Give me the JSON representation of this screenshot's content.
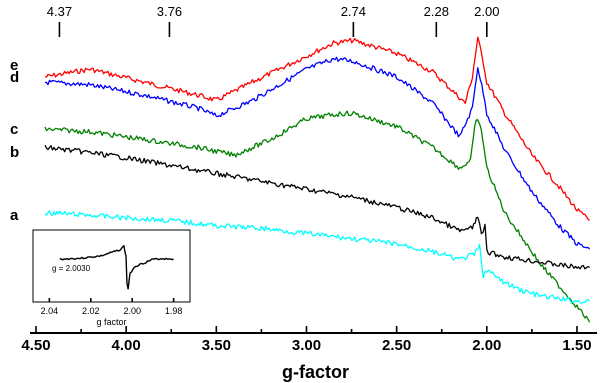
{
  "chart_data": {
    "type": "line",
    "xlabel": "g-factor",
    "xlim": [
      4.5,
      1.4
    ],
    "x_ticks": [
      "4.50",
      "4.00",
      "3.50",
      "3.00",
      "2.50",
      "2.00",
      "1.50"
    ],
    "top_markers": [
      "4.37",
      "3.76",
      "2.74",
      "2.28",
      "2.00"
    ],
    "top_marker_values": [
      4.37,
      3.76,
      2.74,
      2.28,
      2.0
    ],
    "series": [
      {
        "name": "e",
        "color": "#ff0000",
        "x": [
          4.45,
          4.2,
          3.9,
          3.6,
          3.5,
          3.3,
          3.0,
          2.85,
          2.74,
          2.5,
          2.3,
          2.12,
          2.08,
          2.05,
          2.02,
          2.0,
          1.9,
          1.75,
          1.6,
          1.5,
          1.43
        ],
        "y": [
          0.82,
          0.85,
          0.8,
          0.75,
          0.73,
          0.8,
          0.9,
          0.95,
          0.96,
          0.91,
          0.84,
          0.72,
          0.82,
          0.97,
          0.88,
          0.8,
          0.68,
          0.52,
          0.4,
          0.31,
          0.27
        ]
      },
      {
        "name": "d",
        "color": "#0000ff",
        "x": [
          4.45,
          4.2,
          3.9,
          3.6,
          3.5,
          3.3,
          3.0,
          2.85,
          2.74,
          2.5,
          2.3,
          2.15,
          2.08,
          2.05,
          2.02,
          2.0,
          1.9,
          1.75,
          1.6,
          1.5,
          1.43
        ],
        "y": [
          0.8,
          0.79,
          0.75,
          0.7,
          0.67,
          0.73,
          0.85,
          0.89,
          0.88,
          0.82,
          0.72,
          0.59,
          0.7,
          0.86,
          0.76,
          0.68,
          0.54,
          0.38,
          0.25,
          0.18,
          0.16
        ]
      },
      {
        "name": "c",
        "color": "#008000",
        "x": [
          4.45,
          4.2,
          3.9,
          3.6,
          3.4,
          3.2,
          3.0,
          2.8,
          2.74,
          2.5,
          2.3,
          2.15,
          2.09,
          2.06,
          2.03,
          2.0,
          1.9,
          1.8,
          1.7,
          1.6,
          1.5,
          1.43
        ],
        "y": [
          0.62,
          0.61,
          0.58,
          0.55,
          0.52,
          0.58,
          0.66,
          0.68,
          0.68,
          0.63,
          0.55,
          0.47,
          0.5,
          0.66,
          0.62,
          0.47,
          0.3,
          0.2,
          0.1,
          0.02,
          -0.06,
          -0.12
        ]
      },
      {
        "name": "b",
        "color": "#000000",
        "x": [
          4.45,
          4.2,
          4.0,
          3.75,
          3.5,
          3.25,
          3.0,
          2.75,
          2.5,
          2.3,
          2.15,
          2.08,
          2.05,
          2.03,
          2.01,
          2.0,
          1.95,
          1.9,
          1.8,
          1.7,
          1.6,
          1.5,
          1.43
        ],
        "y": [
          0.55,
          0.53,
          0.51,
          0.48,
          0.45,
          0.42,
          0.39,
          0.36,
          0.32,
          0.28,
          0.23,
          0.24,
          0.29,
          0.21,
          0.25,
          0.15,
          0.14,
          0.13,
          0.12,
          0.11,
          0.1,
          0.09,
          0.09
        ]
      },
      {
        "name": "a",
        "color": "#00ffff",
        "x": [
          4.45,
          4.2,
          4.0,
          3.75,
          3.5,
          3.25,
          3.0,
          2.75,
          2.5,
          2.3,
          2.15,
          2.07,
          2.04,
          2.02,
          2.0,
          1.9,
          1.8,
          1.7,
          1.6,
          1.5,
          1.43
        ],
        "y": [
          0.3,
          0.29,
          0.28,
          0.27,
          0.25,
          0.24,
          0.22,
          0.2,
          0.18,
          0.15,
          0.12,
          0.14,
          0.17,
          0.06,
          0.08,
          0.03,
          0.0,
          -0.02,
          -0.03,
          -0.04,
          -0.04
        ]
      }
    ],
    "inset": {
      "xlabel": "g factor",
      "xlim": [
        2.045,
        1.975
      ],
      "x_ticks": [
        "2.04",
        "2.02",
        "2.00",
        "1.98"
      ],
      "annotation": "g = 2.0030",
      "series": {
        "color": "#000000",
        "x": [
          2.035,
          2.025,
          2.015,
          2.01,
          2.006,
          2.004,
          2.003,
          2.0025,
          2.002,
          2.001,
          1.999,
          1.997,
          1.994,
          1.99,
          1.985,
          1.98
        ],
        "y": [
          0.02,
          0.05,
          0.12,
          0.22,
          0.3,
          0.4,
          0.1,
          -0.7,
          -0.85,
          -0.4,
          -0.2,
          -0.15,
          -0.08,
          0.02,
          0.04,
          0.03
        ]
      }
    }
  }
}
